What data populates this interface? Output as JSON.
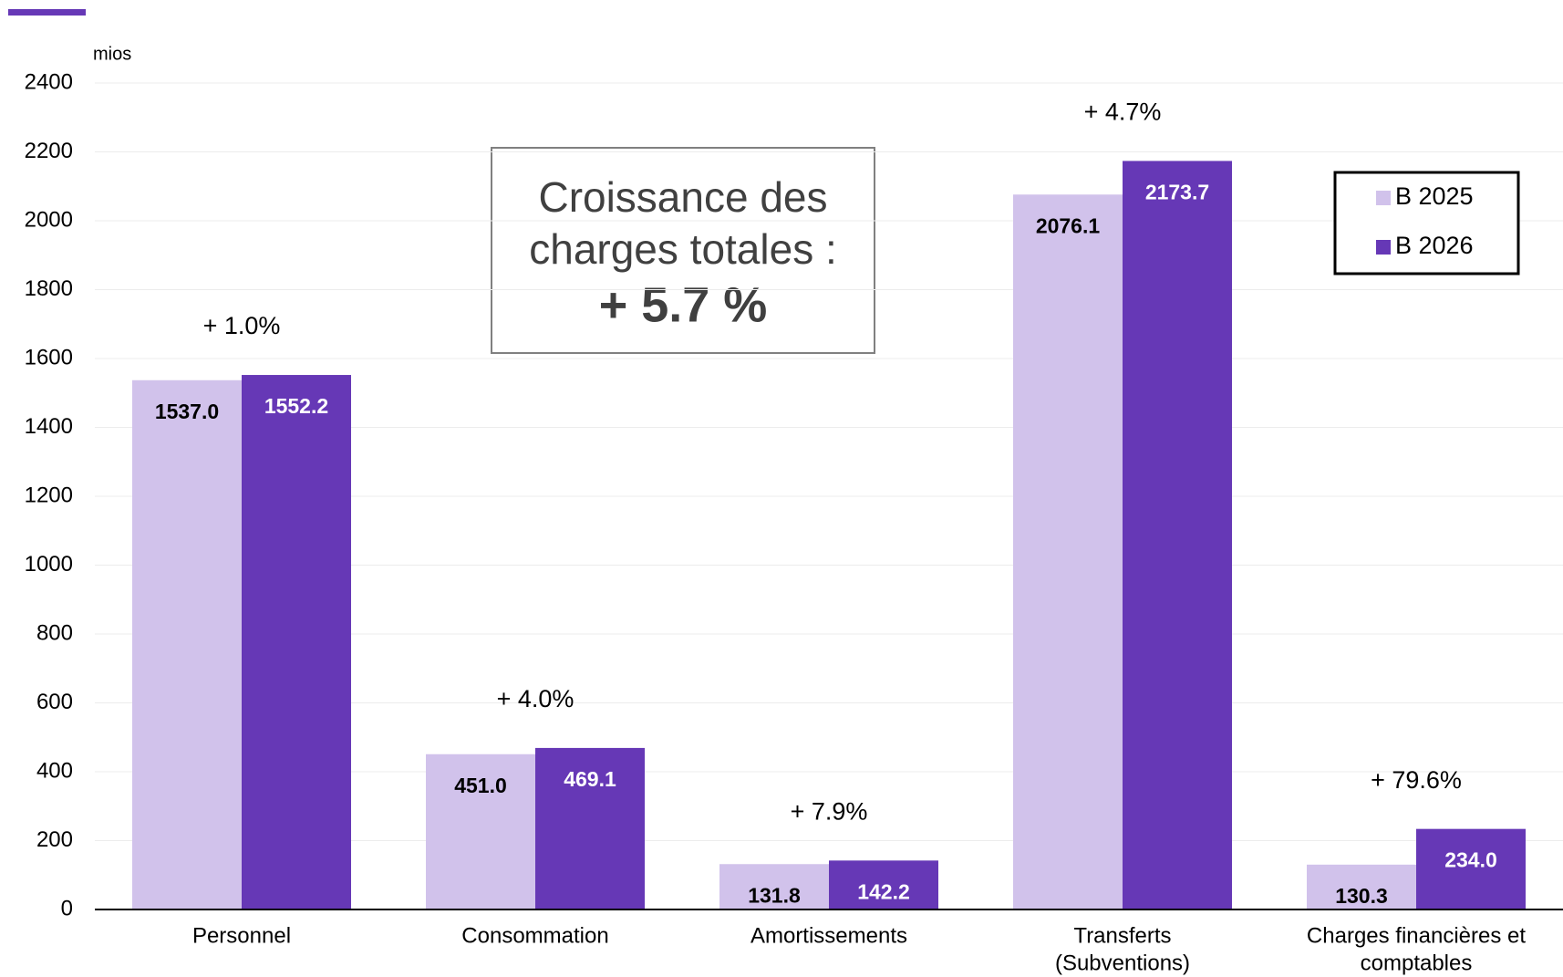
{
  "chart_data": {
    "type": "bar",
    "unit_label": "mios",
    "categories": [
      [
        "Personnel"
      ],
      [
        "Consommation"
      ],
      [
        "Amortissements"
      ],
      [
        "Transferts",
        "(Subventions)"
      ],
      [
        "Charges financières et",
        "comptables"
      ]
    ],
    "series": [
      {
        "name": "B 2025",
        "color": "#d1c2eb",
        "label_color": "#000000",
        "values": [
          1537.0,
          451.0,
          131.8,
          2076.1,
          130.3
        ],
        "value_labels": [
          "1537.0",
          "451.0",
          "131.8",
          "2076.1",
          "130.3"
        ]
      },
      {
        "name": "B 2026",
        "color": "#6638b6",
        "label_color": "#ffffff",
        "values": [
          1552.2,
          469.1,
          142.2,
          2173.7,
          234.0
        ],
        "value_labels": [
          "1552.2",
          "469.1",
          "142.2",
          "2173.7",
          "234.0"
        ]
      }
    ],
    "growth_labels": [
      "+ 1.0%",
      "+ 4.0%",
      "+ 7.9%",
      "+ 4.7%",
      "+ 79.6%"
    ],
    "annotation_box": {
      "lines": [
        "Croissance des",
        "charges totales :"
      ],
      "highlight": "+ 5.7 %"
    },
    "ylim": [
      0,
      2400
    ],
    "yticks": [
      0,
      200,
      400,
      600,
      800,
      1000,
      1200,
      1400,
      1600,
      1800,
      2000,
      2200,
      2400
    ],
    "grid": true,
    "legend": "top-right"
  }
}
